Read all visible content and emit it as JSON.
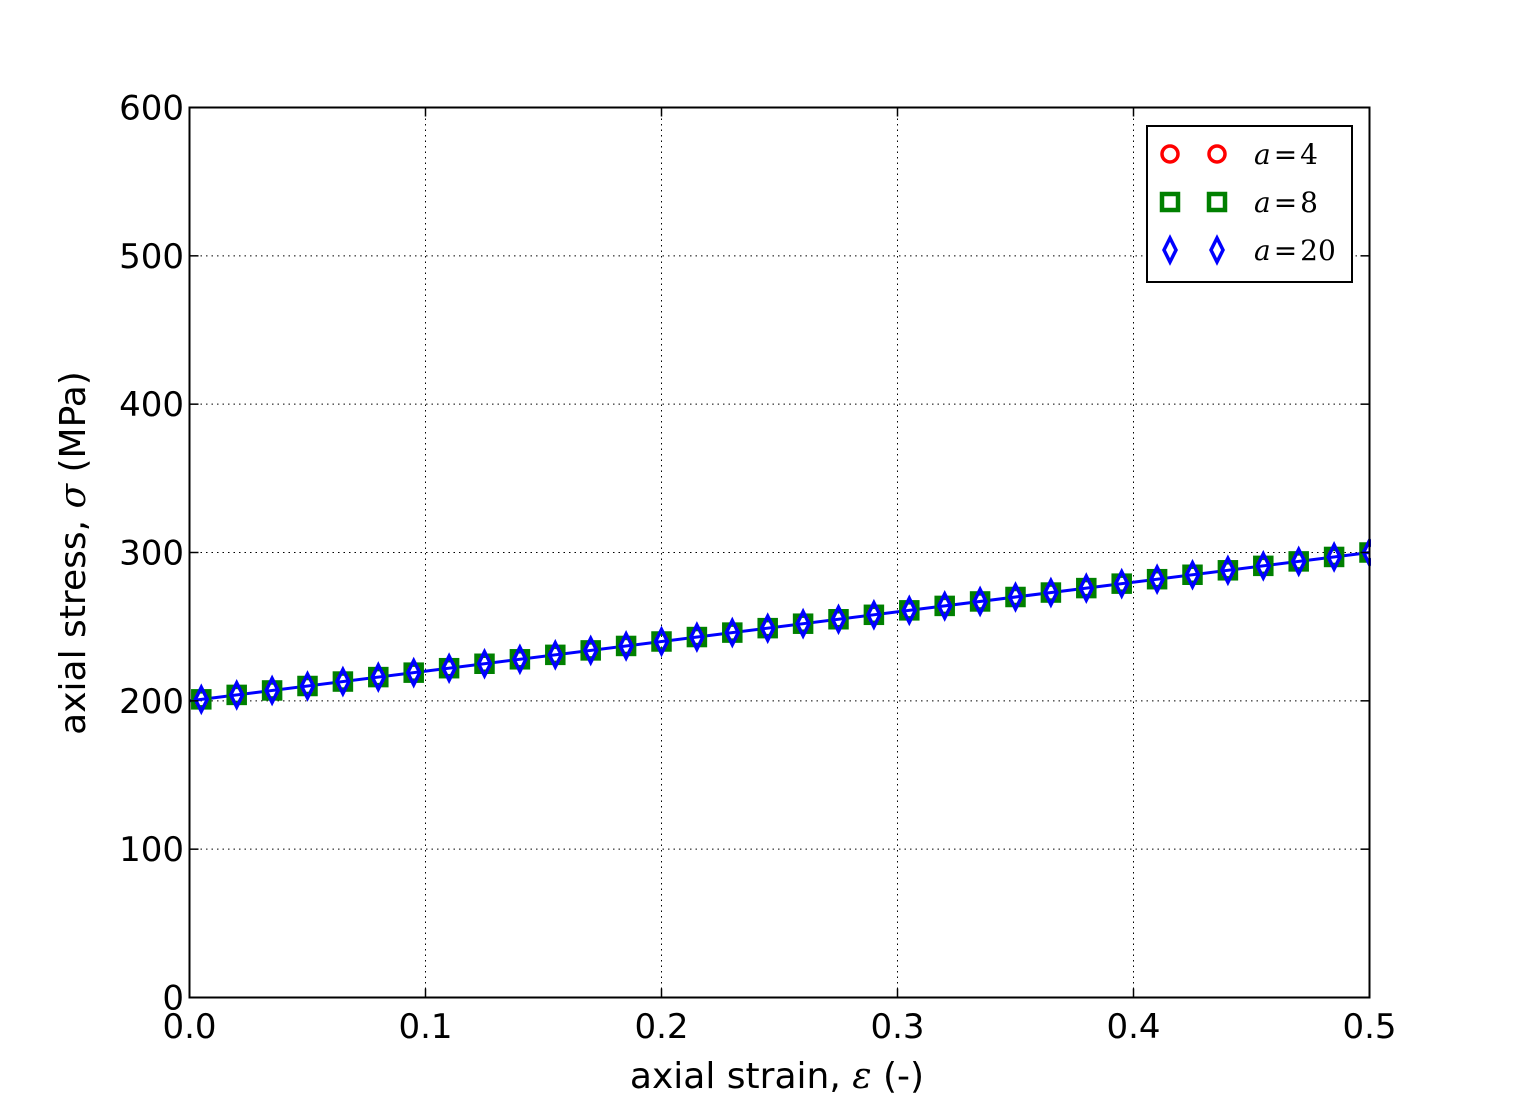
{
  "chart_data": {
    "type": "scatter",
    "xlabel": {
      "prefix": "axial strain, ",
      "symbol": "ε",
      "suffix": " (-)"
    },
    "ylabel": {
      "prefix": "axial stress, ",
      "symbol": "σ",
      "suffix": " (MPa)"
    },
    "xlim": [
      0.0,
      0.5
    ],
    "ylim": [
      0,
      600
    ],
    "xticks": [
      "0.0",
      "0.1",
      "0.2",
      "0.3",
      "0.4",
      "0.5"
    ],
    "yticks": [
      "0",
      "100",
      "200",
      "300",
      "400",
      "500",
      "600"
    ],
    "grid": true,
    "legend_position": "top-right",
    "reference_line": {
      "x": [
        0.0,
        0.5
      ],
      "y": [
        200,
        300
      ],
      "color": "#0000ff"
    },
    "x": [
      0.005,
      0.02,
      0.035,
      0.05,
      0.065,
      0.08,
      0.095,
      0.11,
      0.125,
      0.14,
      0.155,
      0.17,
      0.185,
      0.2,
      0.215,
      0.23,
      0.245,
      0.26,
      0.275,
      0.29,
      0.305,
      0.32,
      0.335,
      0.35,
      0.365,
      0.38,
      0.395,
      0.41,
      0.425,
      0.44,
      0.455,
      0.47,
      0.485,
      0.5
    ],
    "series": [
      {
        "name_var": "a",
        "name_val": "4",
        "marker": "circle",
        "color": "#ff0000",
        "values": [
          201,
          204,
          207,
          210,
          213,
          216,
          219,
          222,
          225,
          228,
          231,
          234,
          237,
          240,
          243,
          246,
          249,
          252,
          255,
          258,
          261,
          264,
          267,
          270,
          273,
          276,
          279,
          282,
          285,
          288,
          291,
          294,
          297,
          300
        ]
      },
      {
        "name_var": "a",
        "name_val": "8",
        "marker": "square",
        "color": "#008000",
        "values": [
          201,
          204,
          207,
          210,
          213,
          216,
          219,
          222,
          225,
          228,
          231,
          234,
          237,
          240,
          243,
          246,
          249,
          252,
          255,
          258,
          261,
          264,
          267,
          270,
          273,
          276,
          279,
          282,
          285,
          288,
          291,
          294,
          297,
          300
        ]
      },
      {
        "name_var": "a",
        "name_val": "20",
        "marker": "diamond",
        "color": "#0000ff",
        "values": [
          201,
          204,
          207,
          210,
          213,
          216,
          219,
          222,
          225,
          228,
          231,
          234,
          237,
          240,
          243,
          246,
          249,
          252,
          255,
          258,
          261,
          264,
          267,
          270,
          273,
          276,
          279,
          282,
          285,
          288,
          291,
          294,
          297,
          300
        ]
      }
    ]
  }
}
